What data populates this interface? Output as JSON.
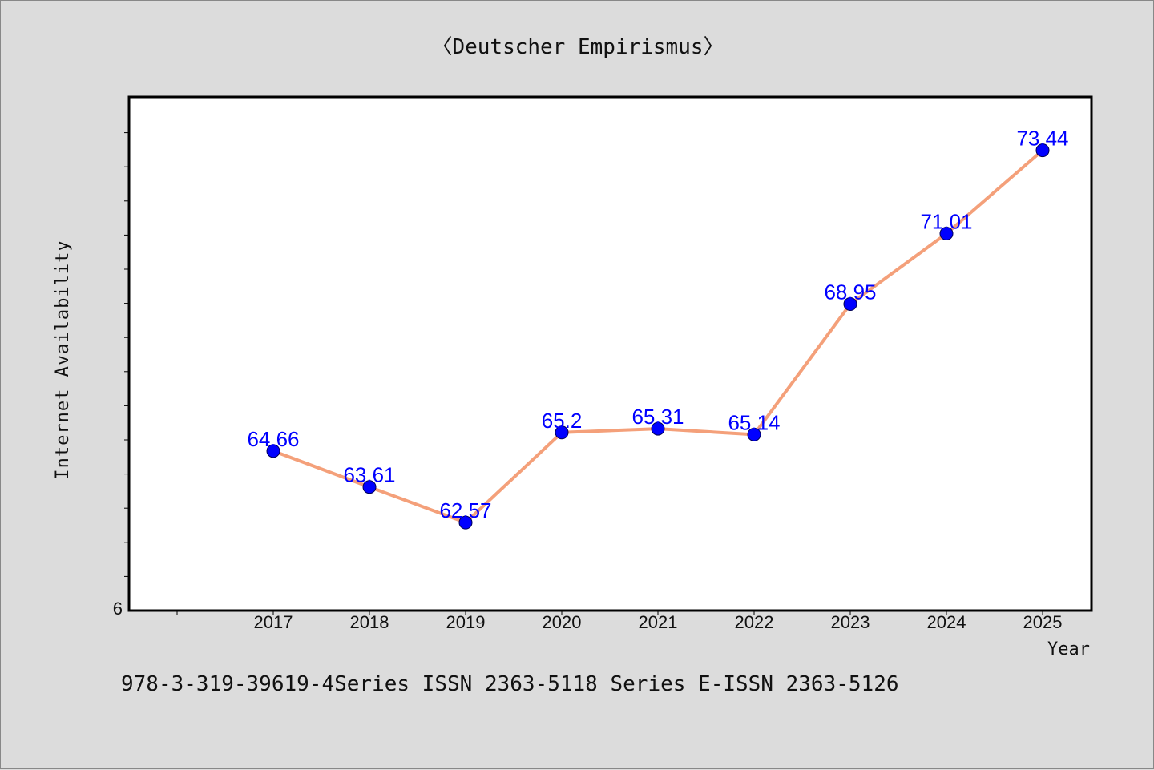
{
  "page": {
    "background": "#dcdcdc",
    "caption": "978-3-319-39619-4Series ISSN 2363-5118 Series E-ISSN 2363-5126"
  },
  "chart_data": {
    "type": "line",
    "title": "〈Deutscher Empirismus〉",
    "xlabel": "Year",
    "ylabel": "Internet Availability",
    "categories": [
      "2017",
      "2018",
      "2019",
      "2020",
      "2021",
      "2022",
      "2023",
      "2024",
      "2025"
    ],
    "series": [
      {
        "values": [
          64.66,
          63.61,
          62.57,
          65.2,
          65.31,
          65.14,
          68.95,
          71.01,
          73.44
        ],
        "labels": [
          "64.66",
          "63.61",
          "62.57",
          "65.2",
          "65.31",
          "65.14",
          "68.95",
          "71.01",
          "73.44"
        ],
        "line_color": "#f4a07a",
        "marker_color": "#0000ff",
        "label_color": "#0000ff"
      }
    ],
    "y_tick_labels": [
      "6"
    ],
    "ylim": [
      60.0,
      75.0
    ],
    "grid": false,
    "legend": "none",
    "plot_background": "#ffffff"
  }
}
